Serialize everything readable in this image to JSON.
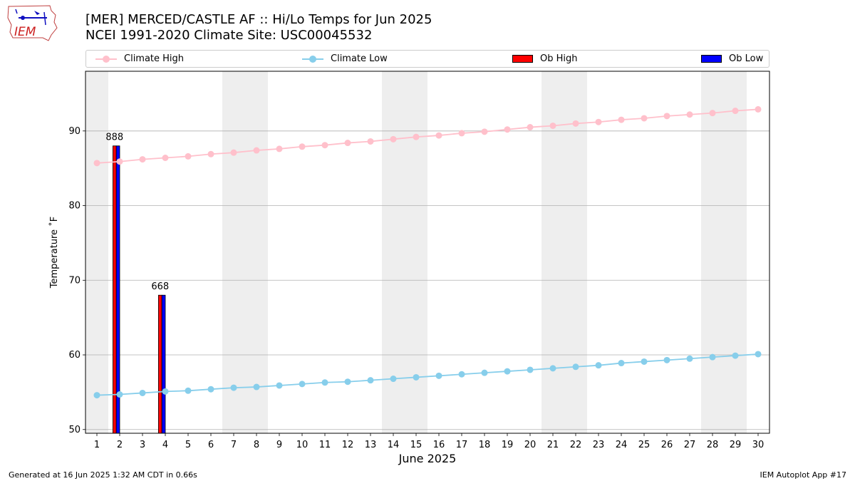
{
  "header": {
    "logo_text": "IEM",
    "title_line1": "[MER] MERCED/CASTLE AF :: Hi/Lo Temps for Jun 2025",
    "title_line2": "NCEI 1991-2020 Climate Site: USC00045532"
  },
  "legend": {
    "items": [
      {
        "label": "Climate High",
        "kind": "line",
        "color": "#FFC0CB"
      },
      {
        "label": "Climate Low",
        "kind": "line",
        "color": "#87CEEB"
      },
      {
        "label": "Ob High",
        "kind": "bar",
        "color": "#FF0000"
      },
      {
        "label": "Ob Low",
        "kind": "bar",
        "color": "#0000FF"
      }
    ]
  },
  "footer": {
    "left": "Generated at 16 Jun 2025 1:32 AM CDT in 0.66s",
    "right": "IEM Autoplot App #17"
  },
  "chart_data": {
    "type": "bar",
    "xlabel": "June 2025",
    "ylabel": "Temperature ˚F",
    "xlim": [
      0.5,
      30.5
    ],
    "ylim": [
      49.5,
      98
    ],
    "yticks": [
      50,
      60,
      70,
      80,
      90
    ],
    "grid": "horizontal",
    "weekend_shaded_days": [
      1,
      7,
      8,
      14,
      15,
      21,
      22,
      28,
      29
    ],
    "x": [
      1,
      2,
      3,
      4,
      5,
      6,
      7,
      8,
      9,
      10,
      11,
      12,
      13,
      14,
      15,
      16,
      17,
      18,
      19,
      20,
      21,
      22,
      23,
      24,
      25,
      26,
      27,
      28,
      29,
      30
    ],
    "series": [
      {
        "name": "Climate High",
        "kind": "line",
        "color": "#FFC0CB",
        "values": [
          85.7,
          85.9,
          86.2,
          86.4,
          86.6,
          86.9,
          87.1,
          87.4,
          87.6,
          87.9,
          88.1,
          88.4,
          88.6,
          88.9,
          89.2,
          89.4,
          89.7,
          89.9,
          90.2,
          90.5,
          90.7,
          91.0,
          91.2,
          91.5,
          91.7,
          92.0,
          92.2,
          92.4,
          92.7,
          92.9
        ]
      },
      {
        "name": "Climate Low",
        "kind": "line",
        "color": "#87CEEB",
        "values": [
          54.6,
          54.7,
          54.9,
          55.1,
          55.2,
          55.4,
          55.6,
          55.7,
          55.9,
          56.1,
          56.3,
          56.4,
          56.6,
          56.8,
          57.0,
          57.2,
          57.4,
          57.6,
          57.8,
          58.0,
          58.2,
          58.4,
          58.6,
          58.9,
          59.1,
          59.3,
          59.5,
          59.7,
          59.9,
          60.1
        ]
      },
      {
        "name": "Ob High",
        "kind": "bar",
        "color": "#FF0000",
        "points": [
          {
            "day": 2,
            "value": 88
          },
          {
            "day": 4,
            "value": 68
          }
        ]
      },
      {
        "name": "Ob Low",
        "kind": "bar",
        "color": "#0000FF",
        "points": [
          {
            "day": 2,
            "value": 88
          },
          {
            "day": 4,
            "value": 68
          }
        ]
      }
    ],
    "annotations": [
      {
        "day": 2,
        "text": "888"
      },
      {
        "day": 4,
        "text": "668"
      }
    ]
  }
}
